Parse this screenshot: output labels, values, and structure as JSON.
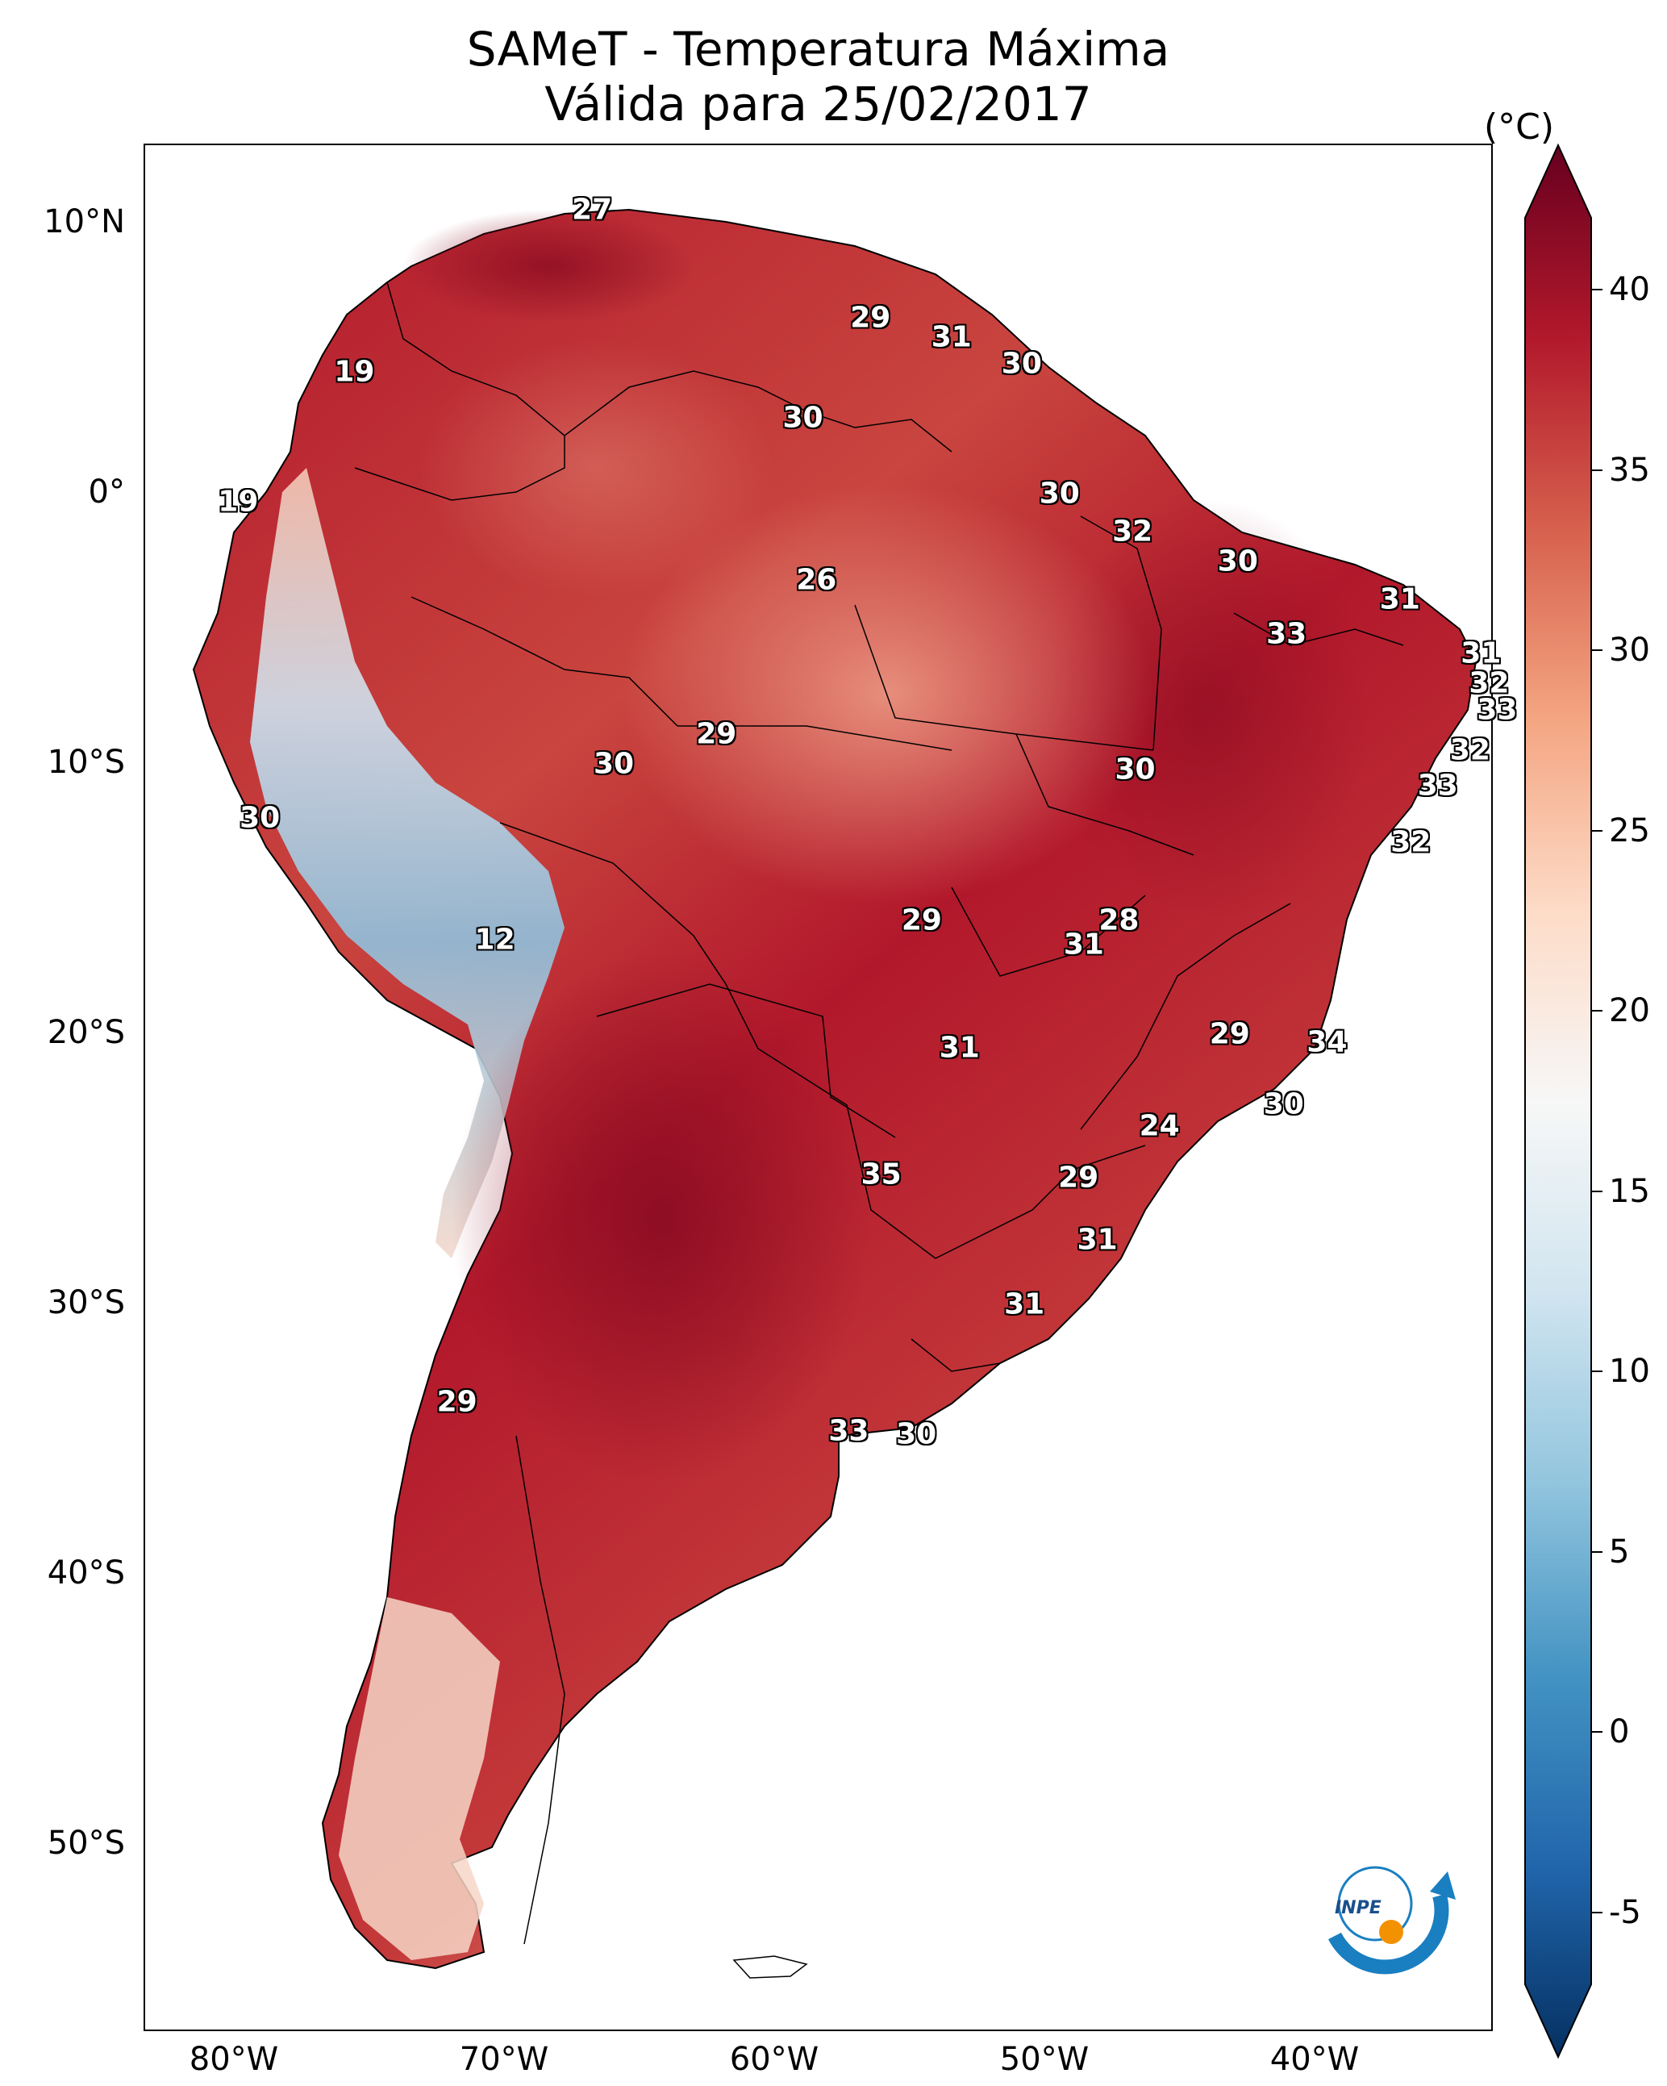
{
  "title_line1": "SAMeT - Temperatura Máxima",
  "title_line2": "Válida para 25/02/2017",
  "lat_ticks": [
    "10°N",
    "0°",
    "10°S",
    "20°S",
    "30°S",
    "40°S",
    "50°S"
  ],
  "lon_ticks": [
    "80°W",
    "70°W",
    "60°W",
    "50°W",
    "40°W"
  ],
  "colorbar": {
    "unit": "(°C)",
    "min": -7,
    "max": 42,
    "ticks": [
      "40",
      "35",
      "30",
      "25",
      "20",
      "15",
      "10",
      "5",
      "0",
      "-5"
    ],
    "colors": [
      "#053061",
      "#2166ac",
      "#4393c3",
      "#92c5de",
      "#d1e5f0",
      "#f7f7f7",
      "#fddbc7",
      "#f4a582",
      "#d6604d",
      "#b2182b",
      "#67001f"
    ]
  },
  "logo_text": "INPE",
  "map_labels": [
    {
      "text": "27",
      "lon": -66.8,
      "lat": 10.5
    },
    {
      "text": "19",
      "lon": -75.6,
      "lat": 4.5
    },
    {
      "text": "29",
      "lon": -56.5,
      "lat": 6.5
    },
    {
      "text": "31",
      "lon": -53.5,
      "lat": 5.8
    },
    {
      "text": "30",
      "lon": -50.9,
      "lat": 4.8
    },
    {
      "text": "30",
      "lon": -59.0,
      "lat": 2.8
    },
    {
      "text": "19",
      "lon": -79.9,
      "lat": -0.3
    },
    {
      "text": "30",
      "lon": -49.5,
      "lat": 0.0
    },
    {
      "text": "32",
      "lon": -46.8,
      "lat": -1.4
    },
    {
      "text": "30",
      "lon": -42.9,
      "lat": -2.5
    },
    {
      "text": "26",
      "lon": -58.5,
      "lat": -3.2
    },
    {
      "text": "31",
      "lon": -36.9,
      "lat": -3.9
    },
    {
      "text": "33",
      "lon": -41.1,
      "lat": -5.2
    },
    {
      "text": "31",
      "lon": -33.9,
      "lat": -5.9
    },
    {
      "text": "32",
      "lon": -33.6,
      "lat": -7.0
    },
    {
      "text": "33",
      "lon": -33.3,
      "lat": -8.0
    },
    {
      "text": "29",
      "lon": -62.2,
      "lat": -8.9
    },
    {
      "text": "30",
      "lon": -66.0,
      "lat": -10.0
    },
    {
      "text": "30",
      "lon": -46.7,
      "lat": -10.2
    },
    {
      "text": "32",
      "lon": -34.3,
      "lat": -9.5
    },
    {
      "text": "33",
      "lon": -35.5,
      "lat": -10.8
    },
    {
      "text": "30",
      "lon": -79.1,
      "lat": -12.0
    },
    {
      "text": "32",
      "lon": -36.5,
      "lat": -12.9
    },
    {
      "text": "29",
      "lon": -54.6,
      "lat": -15.8
    },
    {
      "text": "28",
      "lon": -47.3,
      "lat": -15.8
    },
    {
      "text": "12",
      "lon": -70.4,
      "lat": -16.5
    },
    {
      "text": "31",
      "lon": -48.6,
      "lat": -16.7
    },
    {
      "text": "29",
      "lon": -43.2,
      "lat": -20.0
    },
    {
      "text": "34",
      "lon": -39.6,
      "lat": -20.3
    },
    {
      "text": "31",
      "lon": -53.2,
      "lat": -20.5
    },
    {
      "text": "30",
      "lon": -41.2,
      "lat": -22.6
    },
    {
      "text": "24",
      "lon": -45.8,
      "lat": -23.4
    },
    {
      "text": "35",
      "lon": -56.1,
      "lat": -25.2
    },
    {
      "text": "29",
      "lon": -48.8,
      "lat": -25.3
    },
    {
      "text": "31",
      "lon": -48.1,
      "lat": -27.6
    },
    {
      "text": "31",
      "lon": -50.8,
      "lat": -30.0
    },
    {
      "text": "29",
      "lon": -71.8,
      "lat": -33.6
    },
    {
      "text": "33",
      "lon": -57.3,
      "lat": -34.7
    },
    {
      "text": "30",
      "lon": -54.8,
      "lat": -34.8
    }
  ]
}
